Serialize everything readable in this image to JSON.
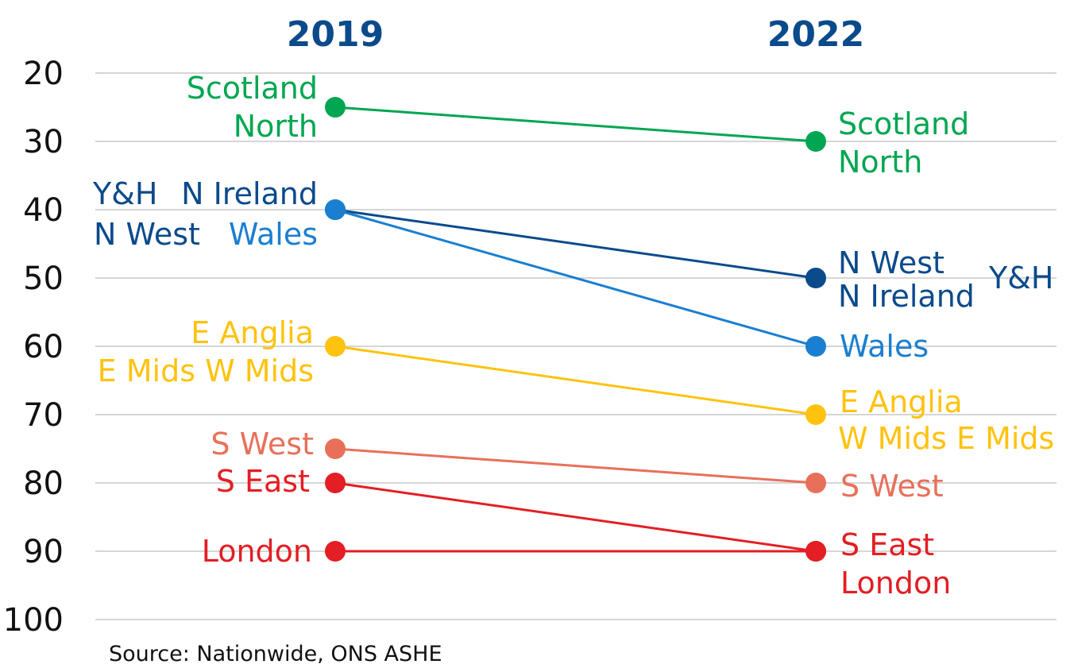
{
  "chart_data": {
    "type": "line",
    "subtype": "slope",
    "categories": [
      "2019",
      "2022"
    ],
    "ylim": [
      20,
      100
    ],
    "y_inverted": true,
    "y_ticks": [
      "20",
      "30",
      "40",
      "50",
      "60",
      "70",
      "80",
      "90",
      "100"
    ],
    "grid": true,
    "series": [
      {
        "name": "Scotland / North",
        "values": [
          25,
          30
        ],
        "color": "#00a651"
      },
      {
        "name": "N West / N Ireland / Y&H",
        "values": [
          40,
          50
        ],
        "color": "#0b4a8b"
      },
      {
        "name": "Wales",
        "values": [
          40,
          60
        ],
        "color": "#1a7fd0"
      },
      {
        "name": "E Anglia / E Mids / W Mids",
        "values": [
          60,
          70
        ],
        "color": "#ffc20e"
      },
      {
        "name": "S West",
        "values": [
          75,
          80
        ],
        "color": "#e8705a"
      },
      {
        "name": "S East",
        "values": [
          80,
          90
        ],
        "color": "#e31e24"
      },
      {
        "name": "London",
        "values": [
          90,
          90
        ],
        "color": "#e31e24"
      }
    ],
    "labels_2019": {
      "scotland": "Scotland",
      "north": "North",
      "yh": "Y&H",
      "nireland": "N Ireland",
      "nwest": "N West",
      "wales": "Wales",
      "eanglia": "E Anglia",
      "emids_wmids": "E Mids W Mids",
      "swest": "S West",
      "seast": "S East",
      "london": "London"
    },
    "labels_2022": {
      "scotland": "Scotland",
      "north": "North",
      "nwest": "N West",
      "nireland": "N Ireland",
      "yh": "Y&H",
      "wales": "Wales",
      "eanglia": "E Anglia",
      "wmids_emids": "W Mids E Mids",
      "swest": "S West",
      "seast": "S East",
      "london": "London"
    },
    "source": "Source: Nationwide, ONS ASHE"
  }
}
